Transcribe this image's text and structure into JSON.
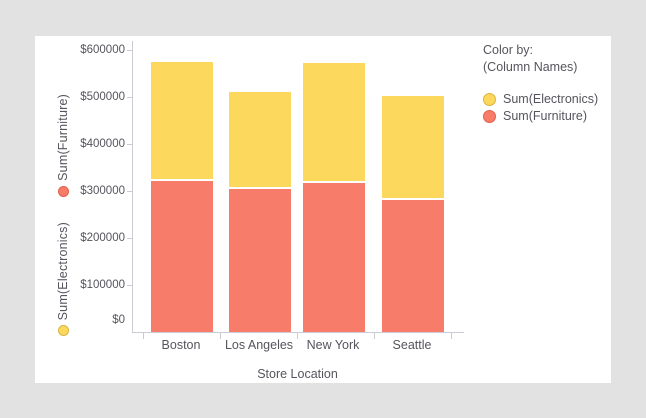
{
  "window": {
    "background_color": "#e2e2e2",
    "card_color": "#ffffff",
    "axis_line_color": "#c9ccd3",
    "text_color": "#55555d"
  },
  "y_axis": {
    "field_labels": [
      {
        "label": "Sum(Furniture)",
        "dot_color": "#f87c6a",
        "dot_border": "#e0604b"
      },
      {
        "label": "Sum(Electronics)",
        "dot_color": "#fcd85c",
        "dot_border": "#dcb33f"
      }
    ]
  },
  "x_axis": {
    "title": "Store Location"
  },
  "legend": {
    "title": "Color by:",
    "subtitle": "(Column Names)",
    "items": [
      {
        "label": "Sum(Electronics)",
        "color": "#fcd85c",
        "border": "#dcb33f"
      },
      {
        "label": "Sum(Furniture)",
        "color": "#f87c6a",
        "border": "#e0604b"
      }
    ]
  },
  "chart_data": {
    "type": "bar",
    "stacked": true,
    "categories": [
      "Boston",
      "Los Angeles",
      "New York",
      "Seattle"
    ],
    "series": [
      {
        "name": "Sum(Furniture)",
        "color": "#f87c6a",
        "values": [
          321000,
          304000,
          318000,
          282000
        ]
      },
      {
        "name": "Sum(Electronics)",
        "color": "#fcd85c",
        "values": [
          255000,
          208000,
          255000,
          220000
        ]
      }
    ],
    "xlabel": "Store Location",
    "y_ticks": [
      "$600000",
      "$500000",
      "$400000",
      "$300000",
      "$200000",
      "$100000",
      "$0"
    ],
    "ylim": [
      0,
      600000
    ],
    "grid": false,
    "legend_position": "right"
  }
}
